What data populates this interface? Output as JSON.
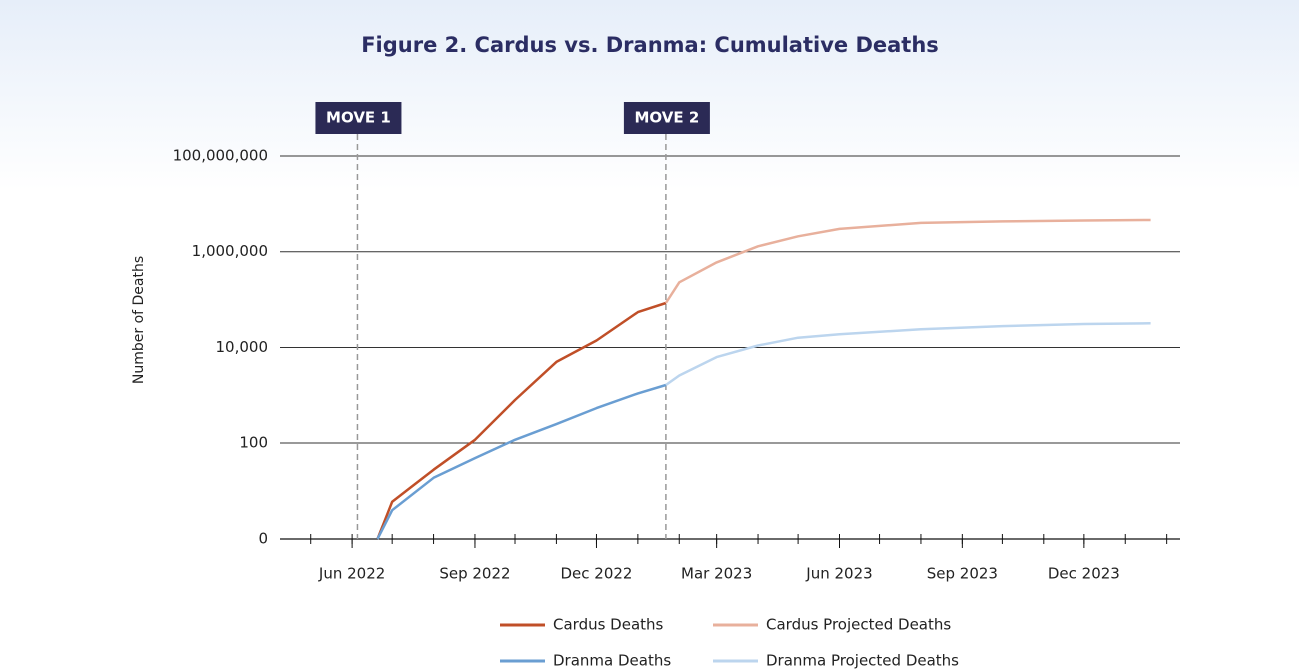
{
  "chart_data": {
    "type": "line",
    "title": "Figure 2. Cardus vs. Dranma: Cumulative Deaths",
    "ylabel": "Number of Deaths",
    "yscale": "log",
    "ylim": [
      0,
      100000000
    ],
    "yticks": [
      0,
      100,
      {
        "value": 10000,
        "label": "10,000"
      },
      {
        "value": 1000000,
        "label": "1,000,000"
      },
      {
        "value": 100000000,
        "label": "100,000,000"
      }
    ],
    "xlim": [
      "2022-04-08",
      "2024-02-11"
    ],
    "xticks": [
      {
        "value": "2022-06-01",
        "label": "Jun 2022"
      },
      {
        "value": "2022-09-01",
        "label": "Sep 2022"
      },
      {
        "value": "2022-12-01",
        "label": "Dec 2022"
      },
      {
        "value": "2023-03-01",
        "label": "Mar 2023"
      },
      {
        "value": "2023-06-01",
        "label": "Jun 2023"
      },
      {
        "value": "2023-09-01",
        "label": "Sep 2023"
      },
      {
        "value": "2023-12-01",
        "label": "Dec 2023"
      }
    ],
    "xminorticks": [
      "2022-05-01",
      "2022-06-01",
      "2022-07-01",
      "2022-08-01",
      "2022-09-01",
      "2022-10-01",
      "2022-11-01",
      "2022-12-01",
      "2023-01-01",
      "2023-02-01",
      "2023-03-01",
      "2023-04-01",
      "2023-05-01",
      "2023-06-01",
      "2023-07-01",
      "2023-08-01",
      "2023-09-01",
      "2023-10-01",
      "2023-11-01",
      "2023-12-01",
      "2024-01-01",
      "2024-02-01"
    ],
    "grid": true,
    "annotations": [
      {
        "text": "MOVE 1",
        "x": "2022-06-05"
      },
      {
        "text": "MOVE 2",
        "x": "2023-01-22"
      }
    ],
    "series": [
      {
        "name": "Cardus Deaths",
        "color": "#c04f28",
        "x": [
          "2022-06-20",
          "2022-07-01",
          "2022-07-15",
          "2022-08-01",
          "2022-09-01",
          "2022-10-01",
          "2022-11-01",
          "2022-12-01",
          "2023-01-01",
          "2023-01-22"
        ],
        "values": [
          0,
          5,
          11,
          27,
          117,
          800,
          5000,
          14000,
          55000,
          85000
        ]
      },
      {
        "name": "Cardus Projected Deaths",
        "color": "#e8b09c",
        "x": [
          "2023-01-22",
          "2023-02-01",
          "2023-03-01",
          "2023-04-01",
          "2023-05-01",
          "2023-06-01",
          "2023-08-01",
          "2023-10-01",
          "2023-12-01",
          "2024-01-20"
        ],
        "values": [
          85000,
          230000,
          600000,
          1300000,
          2100000,
          3000000,
          4000000,
          4300000,
          4500000,
          4600000
        ]
      },
      {
        "name": "Dranma Deaths",
        "color": "#6a9ed2",
        "x": [
          "2022-06-20",
          "2022-07-01",
          "2022-08-01",
          "2022-09-01",
          "2022-10-01",
          "2022-11-01",
          "2022-12-01",
          "2023-01-01",
          "2023-01-22"
        ],
        "values": [
          0,
          3,
          18,
          48,
          117,
          250,
          540,
          1100,
          1650
        ]
      },
      {
        "name": "Dranma Projected Deaths",
        "color": "#bcd5ee",
        "x": [
          "2023-01-22",
          "2023-02-01",
          "2023-03-01",
          "2023-04-01",
          "2023-05-01",
          "2023-06-01",
          "2023-08-01",
          "2023-10-01",
          "2023-12-01",
          "2024-01-20"
        ],
        "values": [
          1650,
          2600,
          6300,
          11000,
          16000,
          19000,
          24000,
          28000,
          31000,
          32000
        ]
      }
    ]
  }
}
